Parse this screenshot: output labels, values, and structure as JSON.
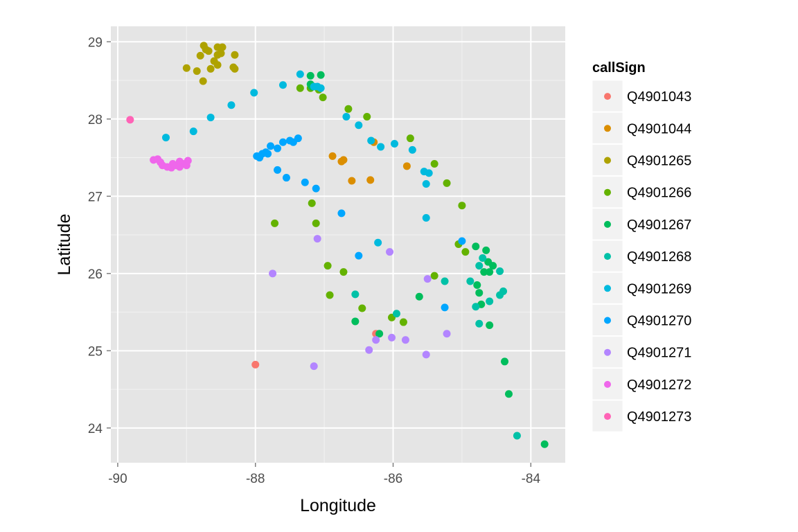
{
  "chart_data": {
    "type": "scatter",
    "xlabel": "Longitude",
    "ylabel": "Latitude",
    "xlim": [
      -90.1,
      -83.5
    ],
    "ylim": [
      23.55,
      29.2
    ],
    "x_ticks": [
      -90,
      -88,
      -86,
      -84
    ],
    "y_ticks": [
      24,
      25,
      26,
      27,
      28,
      29
    ],
    "grid": true,
    "legend_title": "callSign",
    "legend_position": "right",
    "series": [
      {
        "name": "Q4901043",
        "color": "#F8766D",
        "points": [
          [
            -88.0,
            24.82
          ],
          [
            -86.25,
            25.22
          ]
        ]
      },
      {
        "name": "Q4901044",
        "color": "#DB8E00",
        "points": [
          [
            -86.88,
            27.52
          ],
          [
            -86.75,
            27.45
          ],
          [
            -86.72,
            27.47
          ],
          [
            -86.6,
            27.2
          ],
          [
            -86.33,
            27.21
          ],
          [
            -86.28,
            27.7
          ],
          [
            -85.8,
            27.39
          ]
        ]
      },
      {
        "name": "Q4901265",
        "color": "#AEA200",
        "points": [
          [
            -88.75,
            28.95
          ],
          [
            -88.68,
            28.88
          ],
          [
            -88.72,
            28.9
          ],
          [
            -88.8,
            28.82
          ],
          [
            -88.55,
            28.93
          ],
          [
            -88.48,
            28.93
          ],
          [
            -88.55,
            28.83
          ],
          [
            -88.5,
            28.85
          ],
          [
            -88.6,
            28.75
          ],
          [
            -88.55,
            28.7
          ],
          [
            -88.65,
            28.65
          ],
          [
            -88.3,
            28.83
          ],
          [
            -88.3,
            28.65
          ],
          [
            -88.32,
            28.67
          ],
          [
            -88.85,
            28.62
          ],
          [
            -89.0,
            28.66
          ],
          [
            -88.76,
            28.49
          ]
        ]
      },
      {
        "name": "Q4901266",
        "color": "#64B200",
        "points": [
          [
            -87.2,
            28.4
          ],
          [
            -87.35,
            28.4
          ],
          [
            -87.08,
            28.38
          ],
          [
            -87.02,
            28.28
          ],
          [
            -86.65,
            28.13
          ],
          [
            -86.38,
            28.03
          ],
          [
            -85.75,
            27.75
          ],
          [
            -85.4,
            27.42
          ],
          [
            -85.22,
            27.17
          ],
          [
            -85.0,
            26.88
          ],
          [
            -84.95,
            26.28
          ],
          [
            -85.05,
            26.38
          ],
          [
            -85.4,
            25.97
          ],
          [
            -86.95,
            26.1
          ],
          [
            -86.72,
            26.02
          ],
          [
            -86.45,
            25.55
          ],
          [
            -86.02,
            25.43
          ],
          [
            -85.85,
            25.37
          ],
          [
            -87.72,
            26.65
          ],
          [
            -87.18,
            26.91
          ],
          [
            -87.12,
            26.65
          ],
          [
            -86.92,
            25.72
          ]
        ]
      },
      {
        "name": "Q4901267",
        "color": "#00BD5C",
        "points": [
          [
            -87.2,
            28.56
          ],
          [
            -87.05,
            28.57
          ],
          [
            -87.18,
            28.42
          ],
          [
            -87.2,
            28.45
          ],
          [
            -84.8,
            26.35
          ],
          [
            -84.65,
            26.3
          ],
          [
            -84.62,
            26.15
          ],
          [
            -84.55,
            26.1
          ],
          [
            -84.68,
            26.02
          ],
          [
            -84.6,
            26.02
          ],
          [
            -84.78,
            25.85
          ],
          [
            -84.75,
            25.75
          ],
          [
            -84.72,
            25.6
          ],
          [
            -84.6,
            25.33
          ],
          [
            -84.38,
            24.86
          ],
          [
            -84.32,
            24.44
          ],
          [
            -83.8,
            23.79
          ],
          [
            -85.62,
            25.7
          ],
          [
            -86.2,
            25.22
          ],
          [
            -86.55,
            25.38
          ]
        ]
      },
      {
        "name": "Q4901268",
        "color": "#00C1A7",
        "points": [
          [
            -84.88,
            25.9
          ],
          [
            -84.75,
            26.1
          ],
          [
            -84.7,
            26.2
          ],
          [
            -84.45,
            26.03
          ],
          [
            -84.4,
            25.77
          ],
          [
            -84.45,
            25.72
          ],
          [
            -84.6,
            25.64
          ],
          [
            -84.8,
            25.57
          ],
          [
            -84.75,
            25.35
          ],
          [
            -85.25,
            25.9
          ],
          [
            -86.55,
            25.73
          ],
          [
            -85.95,
            25.48
          ],
          [
            -84.2,
            23.9
          ]
        ]
      },
      {
        "name": "Q4901269",
        "color": "#00BADE",
        "points": [
          [
            -87.35,
            28.58
          ],
          [
            -87.6,
            28.44
          ],
          [
            -87.15,
            28.42
          ],
          [
            -87.1,
            28.42
          ],
          [
            -87.05,
            28.4
          ],
          [
            -88.02,
            28.34
          ],
          [
            -88.35,
            28.18
          ],
          [
            -88.65,
            28.02
          ],
          [
            -88.9,
            27.84
          ],
          [
            -89.3,
            27.76
          ],
          [
            -86.68,
            28.03
          ],
          [
            -86.5,
            27.92
          ],
          [
            -86.32,
            27.72
          ],
          [
            -86.18,
            27.64
          ],
          [
            -85.98,
            27.68
          ],
          [
            -85.72,
            27.6
          ],
          [
            -85.55,
            27.32
          ],
          [
            -85.48,
            27.3
          ],
          [
            -85.52,
            27.16
          ],
          [
            -85.52,
            26.72
          ],
          [
            -86.22,
            26.4
          ]
        ]
      },
      {
        "name": "Q4901270",
        "color": "#00A6FF",
        "points": [
          [
            -87.38,
            27.75
          ],
          [
            -87.45,
            27.7
          ],
          [
            -87.5,
            27.72
          ],
          [
            -87.6,
            27.7
          ],
          [
            -87.68,
            27.62
          ],
          [
            -87.78,
            27.65
          ],
          [
            -87.85,
            27.57
          ],
          [
            -87.9,
            27.55
          ],
          [
            -87.94,
            27.5
          ],
          [
            -87.82,
            27.55
          ],
          [
            -87.98,
            27.52
          ],
          [
            -87.68,
            27.34
          ],
          [
            -87.55,
            27.24
          ],
          [
            -87.28,
            27.18
          ],
          [
            -87.12,
            27.1
          ],
          [
            -86.75,
            26.78
          ],
          [
            -86.5,
            26.23
          ],
          [
            -85.0,
            26.42
          ],
          [
            -85.25,
            25.56
          ]
        ]
      },
      {
        "name": "Q4901271",
        "color": "#B385FF",
        "points": [
          [
            -87.1,
            26.45
          ],
          [
            -87.75,
            26.0
          ],
          [
            -86.05,
            26.28
          ],
          [
            -85.5,
            25.93
          ],
          [
            -86.35,
            25.01
          ],
          [
            -86.25,
            25.14
          ],
          [
            -86.02,
            25.17
          ],
          [
            -85.82,
            25.14
          ],
          [
            -85.52,
            24.95
          ],
          [
            -85.22,
            25.22
          ],
          [
            -87.15,
            24.8
          ]
        ]
      },
      {
        "name": "Q4901272",
        "color": "#EF67EB",
        "points": [
          [
            -89.48,
            27.47
          ],
          [
            -89.42,
            27.48
          ],
          [
            -89.38,
            27.44
          ],
          [
            -89.35,
            27.4
          ],
          [
            -89.28,
            27.38
          ],
          [
            -89.22,
            27.37
          ],
          [
            -89.15,
            27.4
          ],
          [
            -89.1,
            27.45
          ],
          [
            -89.05,
            27.42
          ],
          [
            -89.0,
            27.4
          ],
          [
            -88.98,
            27.46
          ],
          [
            -89.2,
            27.42
          ],
          [
            -89.1,
            27.38
          ]
        ]
      },
      {
        "name": "Q4901273",
        "color": "#FF63B6",
        "points": [
          [
            -89.82,
            27.99
          ]
        ]
      }
    ]
  }
}
